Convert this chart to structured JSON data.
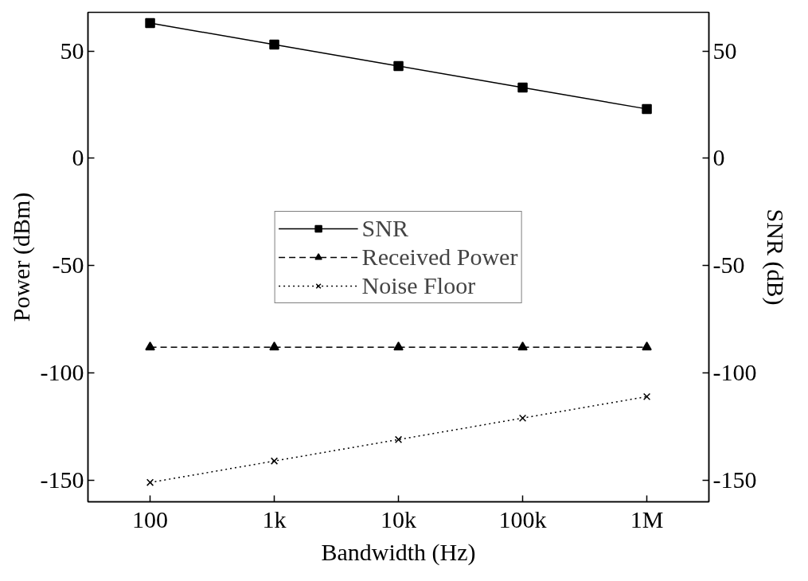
{
  "chart_data": {
    "type": "line",
    "xlabel": "Bandwidth (Hz)",
    "ylabel": "Power (dBm)",
    "y2label": "SNR (dB)",
    "log": "x",
    "x": [
      100,
      1000,
      10000,
      100000,
      1000000
    ],
    "xlim": [
      31.6,
      3160000
    ],
    "xticks": [
      100,
      {
        "value": 1000,
        "label": "1k"
      },
      {
        "value": 10000,
        "label": "10k"
      },
      {
        "value": 100000,
        "label": "100k"
      },
      {
        "value": 1000000,
        "label": "1M"
      }
    ],
    "ylim": [
      -160,
      68
    ],
    "yticks": [
      -150,
      -100,
      -50,
      0,
      50
    ],
    "y2lim": [
      -160,
      68
    ],
    "y2ticks": [
      -150,
      -100,
      -50,
      0,
      50
    ],
    "grid": false,
    "legend": "center",
    "series": [
      {
        "name": "SNR",
        "color": "#000000",
        "values": [
          63,
          53,
          43,
          33,
          23
        ],
        "marker": "square",
        "line_style": "solid"
      },
      {
        "name": "Received Power",
        "color": "#000000",
        "values": [
          -88,
          -88,
          -88,
          -88,
          -88
        ],
        "marker": "triangle",
        "line_style": "dashed"
      },
      {
        "name": "Noise Floor",
        "color": "#000000",
        "values": [
          -151,
          -141,
          -131,
          -121,
          -111
        ],
        "marker": "cross",
        "line_style": "dotted"
      }
    ]
  }
}
